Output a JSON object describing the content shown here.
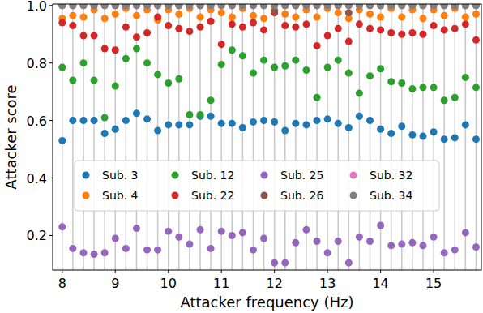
{
  "chart_data": {
    "type": "scatter",
    "x_label": "Attacker frequency (Hz)",
    "y_label": "Attacker score",
    "x": [
      8.0,
      8.2,
      8.4,
      8.6,
      8.8,
      9.0,
      9.2,
      9.4,
      9.6,
      9.8,
      10.0,
      10.2,
      10.4,
      10.6,
      10.8,
      11.0,
      11.2,
      11.4,
      11.6,
      11.8,
      12.0,
      12.2,
      12.4,
      12.6,
      12.8,
      13.0,
      13.2,
      13.4,
      13.6,
      13.8,
      14.0,
      14.2,
      14.4,
      14.6,
      14.8,
      15.0,
      15.2,
      15.4,
      15.6,
      15.8
    ],
    "series": [
      {
        "name": "Sub. 3",
        "color": "#1f77b4",
        "values": [
          0.53,
          0.6,
          0.6,
          0.6,
          0.555,
          0.57,
          0.6,
          0.625,
          0.605,
          0.565,
          0.585,
          0.585,
          0.585,
          0.615,
          0.615,
          0.59,
          0.59,
          0.575,
          0.595,
          0.6,
          0.595,
          0.565,
          0.59,
          0.585,
          0.6,
          0.605,
          0.59,
          0.575,
          0.615,
          0.6,
          0.57,
          0.555,
          0.58,
          0.55,
          0.545,
          0.56,
          0.535,
          0.54,
          0.585,
          0.535
        ]
      },
      {
        "name": "Sub. 4",
        "color": "#ff7f0e",
        "values": [
          0.955,
          0.965,
          0.96,
          0.985,
          0.955,
          0.97,
          0.99,
          0.965,
          0.985,
          0.95,
          0.985,
          0.97,
          0.99,
          0.96,
          0.985,
          0.975,
          0.96,
          0.99,
          0.965,
          0.955,
          0.985,
          0.97,
          0.96,
          0.985,
          0.96,
          0.99,
          0.975,
          0.955,
          0.985,
          0.97,
          0.96,
          0.99,
          0.96,
          0.985,
          0.955,
          0.985,
          0.965,
          0.99,
          0.96,
          0.97
        ]
      },
      {
        "name": "Sub. 12",
        "color": "#2ca02c",
        "values": [
          0.785,
          0.74,
          0.8,
          0.74,
          0.61,
          0.72,
          0.815,
          0.85,
          0.8,
          0.76,
          0.73,
          0.745,
          0.62,
          0.62,
          0.67,
          0.795,
          0.845,
          0.825,
          0.765,
          0.81,
          0.785,
          0.79,
          0.81,
          0.775,
          0.68,
          0.785,
          0.81,
          0.765,
          0.695,
          0.755,
          0.78,
          0.735,
          0.73,
          0.71,
          0.715,
          0.715,
          0.67,
          0.68,
          0.75,
          0.715
        ]
      },
      {
        "name": "Sub. 22",
        "color": "#d62728",
        "values": [
          0.94,
          0.93,
          0.895,
          0.895,
          0.85,
          0.845,
          0.925,
          0.89,
          0.905,
          0.96,
          0.93,
          0.92,
          0.91,
          0.925,
          0.945,
          0.865,
          0.935,
          0.925,
          0.94,
          0.915,
          0.975,
          0.93,
          0.925,
          0.935,
          0.86,
          0.895,
          0.92,
          0.875,
          0.935,
          0.92,
          0.915,
          0.905,
          0.9,
          0.905,
          0.9,
          0.93,
          0.915,
          0.92,
          0.935,
          0.88
        ]
      },
      {
        "name": "Sub. 25",
        "color": "#9467bd",
        "values": [
          0.23,
          0.155,
          0.14,
          0.135,
          0.14,
          0.19,
          0.155,
          0.225,
          0.15,
          0.15,
          0.215,
          0.195,
          0.17,
          0.22,
          0.155,
          0.215,
          0.2,
          0.21,
          0.15,
          0.19,
          0.105,
          0.105,
          0.175,
          0.22,
          0.18,
          0.14,
          0.18,
          0.105,
          0.195,
          0.18,
          0.235,
          0.165,
          0.17,
          0.175,
          0.165,
          0.195,
          0.14,
          0.15,
          0.21,
          0.16
        ]
      },
      {
        "name": "Sub. 26",
        "color": "#8c564b",
        "values": [
          1,
          1,
          1,
          1,
          1,
          1,
          1,
          1,
          1,
          1,
          1,
          1,
          1,
          1,
          1,
          1,
          1,
          1,
          1,
          1,
          0.98,
          1,
          1,
          1,
          1,
          1,
          1,
          0.975,
          1,
          1,
          1,
          1,
          1,
          1,
          1,
          1,
          1,
          1,
          1,
          1
        ]
      },
      {
        "name": "Sub. 32",
        "color": "#e377c2",
        "values": [
          1,
          1,
          1,
          1,
          1,
          1,
          1,
          1,
          1,
          1,
          1,
          1,
          1,
          1,
          1,
          1,
          1,
          1,
          1,
          1,
          1,
          1,
          1,
          1,
          1,
          1,
          1,
          1,
          1,
          1,
          1,
          1,
          1,
          1,
          1,
          1,
          1,
          1,
          1,
          1
        ]
      },
      {
        "name": "Sub. 34",
        "color": "#7f7f7f",
        "values": [
          1,
          1,
          1,
          1,
          1,
          1,
          1,
          1,
          1,
          1,
          1,
          1,
          1,
          1,
          1,
          1,
          1,
          1,
          1,
          1,
          1,
          1,
          1,
          1,
          1,
          1,
          1,
          1,
          1,
          1,
          1,
          1,
          1,
          1,
          1,
          1,
          1,
          1,
          1,
          1
        ]
      }
    ],
    "xlim": [
      7.82,
      15.9
    ],
    "ylim": [
      0.08,
      1.005
    ],
    "xticks": [
      8,
      9,
      10,
      11,
      12,
      13,
      14,
      15
    ],
    "yticks": [
      0.2,
      0.4,
      0.6,
      0.8,
      {
        "value": 1,
        "label": "1.0"
      }
    ],
    "grid": true,
    "legend": "center",
    "marker": "circle"
  }
}
